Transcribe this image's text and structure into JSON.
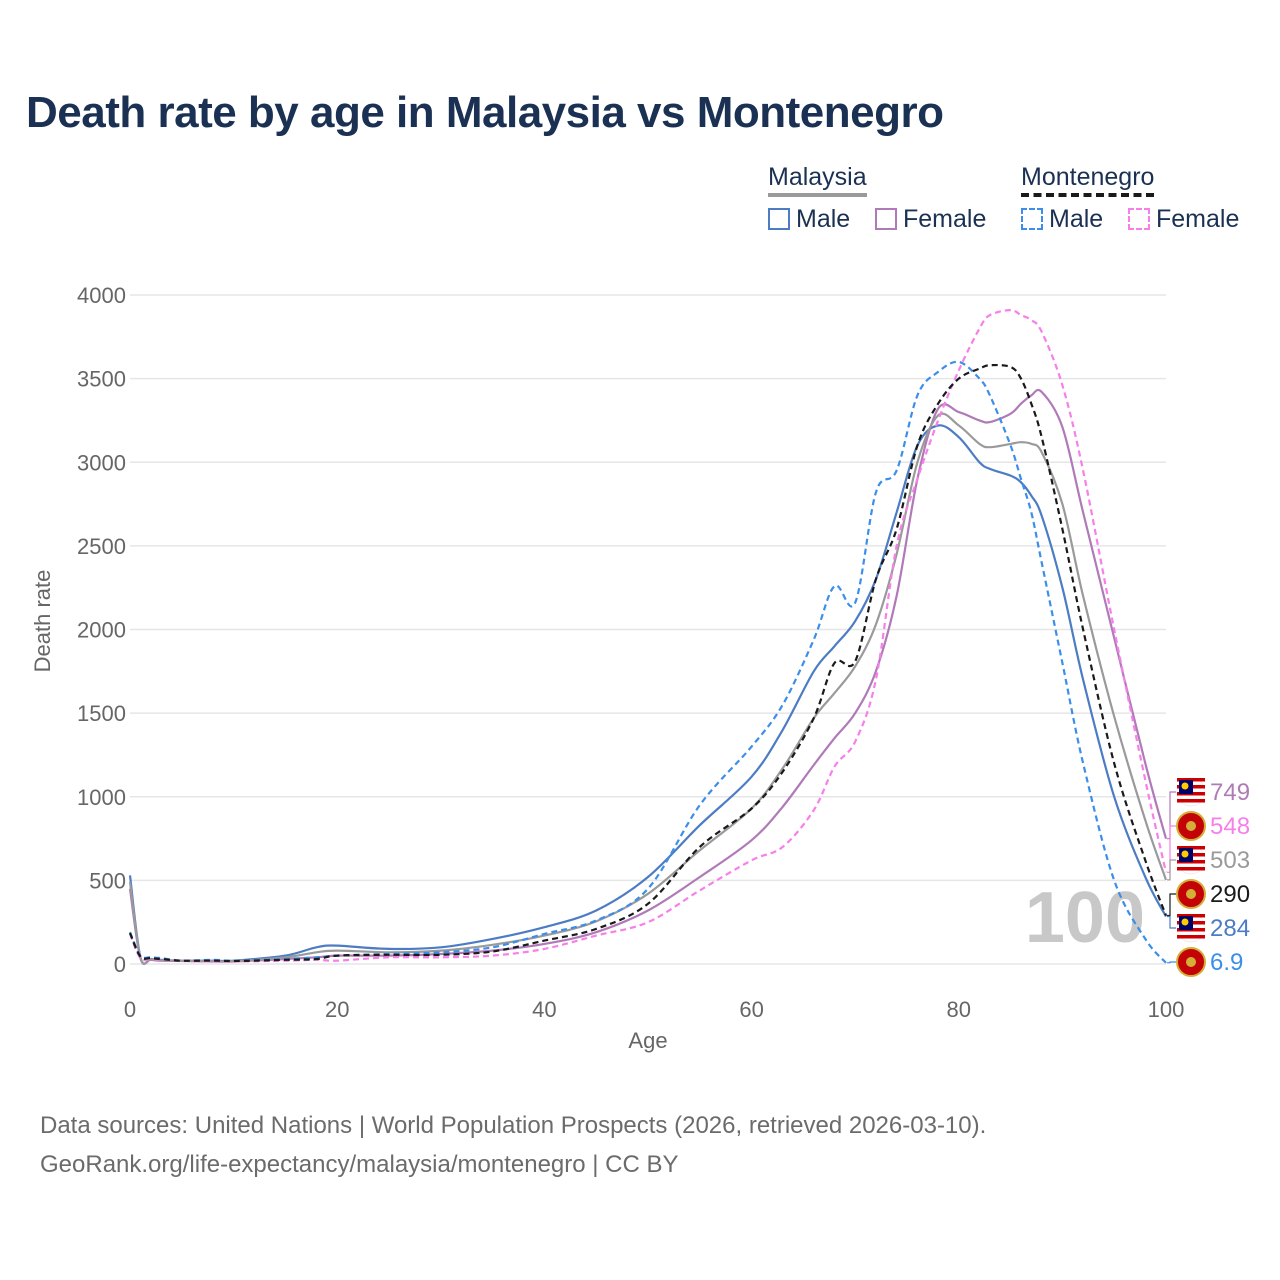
{
  "title": "Death rate by age in Malaysia vs Montenegro",
  "legend": {
    "groups": [
      {
        "name": "Malaysia",
        "style": "solid",
        "color": "#9a9a9a",
        "items": [
          {
            "label": "Male",
            "color": "#4c7cc4"
          },
          {
            "label": "Female",
            "color": "#b07ab8"
          }
        ]
      },
      {
        "name": "Montenegro",
        "style": "dashed",
        "color": "#1a1a1a",
        "items": [
          {
            "label": "Male",
            "color": "#3b8eea"
          },
          {
            "label": "Female",
            "color": "#f77fe9"
          }
        ]
      }
    ]
  },
  "source": {
    "line1": "Data sources: United Nations | World Population Prospects (2026, retrieved 2026-03-10).",
    "line2": "GeoRank.org/life-expectancy/malaysia/montenegro | CC BY"
  },
  "chart_data": {
    "type": "line",
    "xlabel": "Age",
    "ylabel": "Death rate",
    "xlim": [
      0,
      100
    ],
    "ylim": [
      0,
      4000
    ],
    "xticks": [
      0,
      20,
      40,
      60,
      80,
      100
    ],
    "yticks": [
      0,
      500,
      1000,
      1500,
      2000,
      2500,
      3000,
      3500,
      4000
    ],
    "highlight_age": "100",
    "x": [
      0,
      1,
      2,
      3,
      5,
      8,
      10,
      15,
      18,
      20,
      25,
      30,
      35,
      40,
      45,
      50,
      55,
      60,
      63,
      66,
      68,
      70,
      72,
      74,
      76,
      78,
      80,
      82,
      83,
      85,
      86,
      87,
      88,
      90,
      92,
      95,
      98,
      100
    ],
    "series": [
      {
        "name": "Malaysia Male",
        "country": "Malaysia",
        "sex": "Male",
        "dash": false,
        "color": "#4c7cc4",
        "end_label": "284",
        "values": [
          530,
          40,
          30,
          25,
          20,
          20,
          20,
          50,
          100,
          110,
          90,
          100,
          150,
          220,
          320,
          520,
          830,
          1120,
          1400,
          1750,
          1900,
          2050,
          2300,
          2700,
          3100,
          3220,
          3150,
          3000,
          2960,
          2920,
          2880,
          2800,
          2680,
          2250,
          1700,
          1000,
          520,
          284
        ]
      },
      {
        "name": "Malaysia Female",
        "country": "Malaysia",
        "sex": "Female",
        "dash": false,
        "color": "#b07ab8",
        "end_label": "749",
        "values": [
          450,
          35,
          25,
          20,
          18,
          15,
          15,
          30,
          40,
          50,
          50,
          60,
          80,
          120,
          190,
          320,
          520,
          740,
          940,
          1190,
          1350,
          1500,
          1750,
          2200,
          2900,
          3320,
          3300,
          3250,
          3240,
          3290,
          3350,
          3400,
          3420,
          3210,
          2700,
          1950,
          1200,
          749
        ]
      },
      {
        "name": "Malaysia Total",
        "country": "Malaysia",
        "sex": "Total",
        "dash": false,
        "color": "#9a9a9a",
        "end_label": "503",
        "values": [
          490,
          38,
          28,
          22,
          19,
          17,
          17,
          40,
          70,
          80,
          70,
          80,
          115,
          170,
          255,
          420,
          680,
          930,
          1170,
          1470,
          1620,
          1780,
          2030,
          2450,
          3000,
          3280,
          3220,
          3110,
          3090,
          3110,
          3120,
          3110,
          3060,
          2750,
          2200,
          1480,
          860,
          503
        ]
      },
      {
        "name": "Montenegro Male",
        "country": "Montenegro",
        "sex": "Male",
        "dash": true,
        "color": "#3b8eea",
        "end_label": "6.9",
        "values": [
          190,
          50,
          40,
          35,
          20,
          25,
          20,
          30,
          40,
          50,
          60,
          70,
          100,
          180,
          260,
          450,
          950,
          1300,
          1550,
          1940,
          2260,
          2160,
          2820,
          2950,
          3400,
          3540,
          3600,
          3500,
          3400,
          3100,
          2900,
          2700,
          2400,
          1800,
          1200,
          500,
          150,
          7
        ]
      },
      {
        "name": "Montenegro Female",
        "country": "Montenegro",
        "sex": "Female",
        "dash": true,
        "color": "#f77fe9",
        "end_label": "548",
        "values": [
          180,
          35,
          30,
          25,
          20,
          15,
          15,
          20,
          25,
          20,
          40,
          40,
          50,
          90,
          170,
          250,
          440,
          620,
          700,
          920,
          1180,
          1330,
          1700,
          2500,
          2900,
          3250,
          3550,
          3800,
          3880,
          3910,
          3880,
          3850,
          3780,
          3460,
          2950,
          2000,
          1100,
          548
        ]
      },
      {
        "name": "Montenegro Total",
        "country": "Montenegro",
        "sex": "Total",
        "dash": true,
        "color": "#1a1a1a",
        "end_label": "290",
        "values": [
          185,
          45,
          35,
          30,
          20,
          20,
          18,
          25,
          30,
          50,
          55,
          55,
          75,
          140,
          210,
          360,
          700,
          930,
          1150,
          1470,
          1800,
          1810,
          2300,
          2600,
          3100,
          3350,
          3500,
          3560,
          3580,
          3570,
          3500,
          3350,
          3150,
          2600,
          2000,
          1200,
          620,
          290
        ]
      }
    ]
  }
}
